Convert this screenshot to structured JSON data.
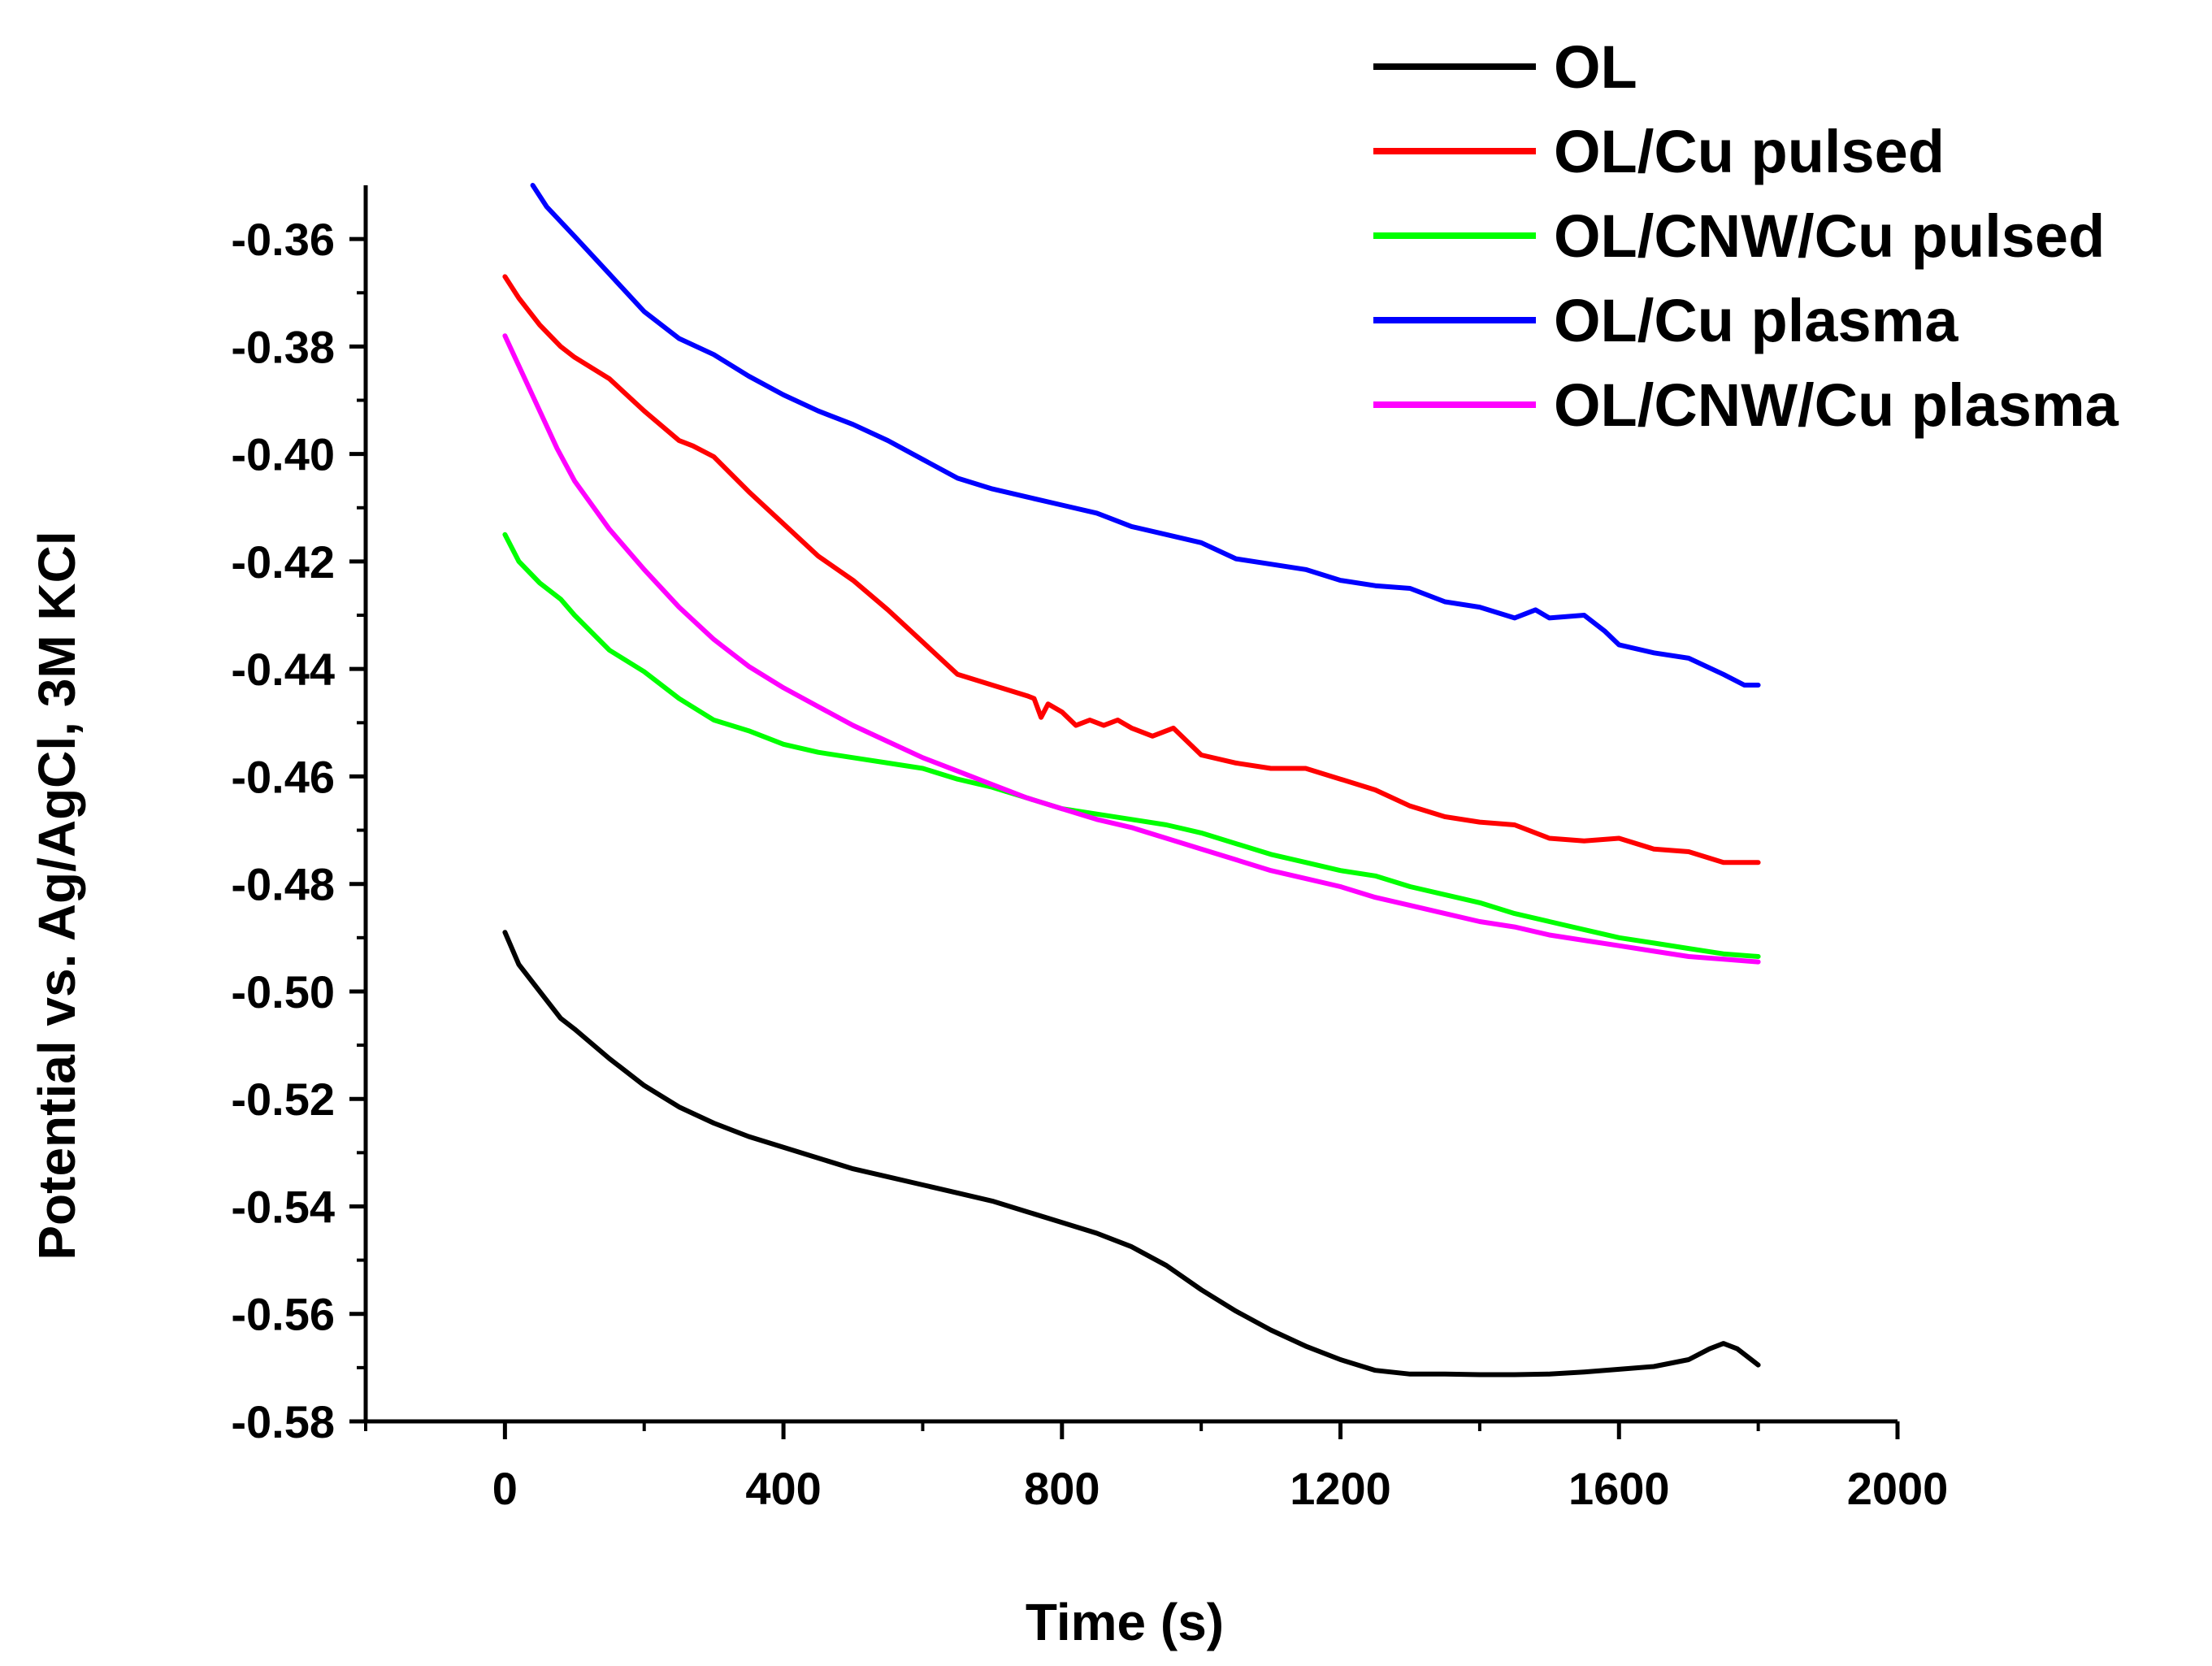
{
  "chart_data": {
    "type": "line",
    "title": "",
    "xlabel": "Time (s)",
    "ylabel": "Potential vs. Ag/AgCl, 3M KCl",
    "xlim": [
      -200,
      2000
    ],
    "ylim": [
      -0.58,
      -0.35
    ],
    "x_ticks": [
      0,
      400,
      800,
      1200,
      1600,
      2000
    ],
    "x_tick_labels": [
      "0",
      "400",
      "800",
      "1200",
      "1600",
      "2000"
    ],
    "y_ticks": [
      -0.58,
      -0.56,
      -0.54,
      -0.52,
      -0.5,
      -0.48,
      -0.46,
      -0.44,
      -0.42,
      -0.4,
      -0.38,
      -0.36
    ],
    "y_tick_labels": [
      "-0.58",
      "-0.56",
      "-0.54",
      "-0.52",
      "-0.50",
      "-0.48",
      "-0.46",
      "-0.44",
      "-0.42",
      "-0.40",
      "-0.38",
      "-0.36"
    ],
    "grid": false,
    "legend_position": "top-right",
    "series": [
      {
        "name": "OL",
        "color": "#000000",
        "x": [
          0,
          20,
          50,
          80,
          100,
          150,
          200,
          250,
          300,
          350,
          400,
          450,
          500,
          550,
          600,
          650,
          700,
          750,
          800,
          850,
          900,
          950,
          1000,
          1050,
          1100,
          1150,
          1200,
          1250,
          1300,
          1350,
          1400,
          1450,
          1500,
          1550,
          1600,
          1650,
          1700,
          1730,
          1750,
          1770,
          1800
        ],
        "y": [
          -0.489,
          -0.495,
          -0.5,
          -0.505,
          -0.507,
          -0.5125,
          -0.5175,
          -0.5215,
          -0.5245,
          -0.527,
          -0.529,
          -0.531,
          -0.533,
          -0.5345,
          -0.536,
          -0.5375,
          -0.539,
          -0.541,
          -0.543,
          -0.545,
          -0.5475,
          -0.551,
          -0.5555,
          -0.5595,
          -0.563,
          -0.566,
          -0.5685,
          -0.5705,
          -0.5712,
          -0.5712,
          -0.5713,
          -0.5713,
          -0.5712,
          -0.5708,
          -0.5703,
          -0.5698,
          -0.5685,
          -0.5665,
          -0.5655,
          -0.5665,
          -0.5695
        ]
      },
      {
        "name": "OL/Cu pulsed",
        "color": "#ff0000",
        "x": [
          0,
          20,
          50,
          80,
          100,
          150,
          200,
          250,
          270,
          300,
          350,
          400,
          450,
          500,
          550,
          600,
          650,
          700,
          750,
          760,
          770,
          780,
          800,
          820,
          840,
          860,
          880,
          900,
          930,
          960,
          1000,
          1050,
          1100,
          1150,
          1200,
          1250,
          1300,
          1350,
          1400,
          1450,
          1500,
          1550,
          1600,
          1650,
          1700,
          1750,
          1800
        ],
        "y": [
          -0.367,
          -0.371,
          -0.376,
          -0.38,
          -0.382,
          -0.386,
          -0.392,
          -0.3975,
          -0.3985,
          -0.4005,
          -0.407,
          -0.413,
          -0.419,
          -0.4235,
          -0.429,
          -0.435,
          -0.441,
          -0.443,
          -0.445,
          -0.4455,
          -0.449,
          -0.4465,
          -0.448,
          -0.4505,
          -0.4495,
          -0.4505,
          -0.4495,
          -0.451,
          -0.4525,
          -0.451,
          -0.456,
          -0.4575,
          -0.4585,
          -0.4585,
          -0.4605,
          -0.4625,
          -0.4655,
          -0.4675,
          -0.4685,
          -0.469,
          -0.4715,
          -0.472,
          -0.4715,
          -0.4735,
          -0.474,
          -0.476,
          -0.476
        ]
      },
      {
        "name": "OL/CNW/Cu pulsed",
        "color": "#00ff00",
        "x": [
          0,
          20,
          50,
          80,
          100,
          150,
          200,
          250,
          300,
          350,
          400,
          450,
          500,
          550,
          600,
          650,
          700,
          750,
          800,
          850,
          900,
          950,
          1000,
          1050,
          1100,
          1150,
          1200,
          1250,
          1300,
          1350,
          1400,
          1450,
          1500,
          1550,
          1600,
          1650,
          1700,
          1750,
          1800
        ],
        "y": [
          -0.415,
          -0.42,
          -0.424,
          -0.427,
          -0.43,
          -0.4365,
          -0.4405,
          -0.4455,
          -0.4495,
          -0.4515,
          -0.454,
          -0.4555,
          -0.4565,
          -0.4575,
          -0.4585,
          -0.4605,
          -0.462,
          -0.464,
          -0.466,
          -0.467,
          -0.468,
          -0.469,
          -0.4705,
          -0.4725,
          -0.4745,
          -0.476,
          -0.4775,
          -0.4785,
          -0.4805,
          -0.482,
          -0.4835,
          -0.4855,
          -0.487,
          -0.4885,
          -0.49,
          -0.491,
          -0.492,
          -0.493,
          -0.4935
        ]
      },
      {
        "name": "OL/Cu plasma",
        "color": "#0000ff",
        "x": [
          40,
          60,
          100,
          150,
          200,
          250,
          300,
          350,
          400,
          450,
          500,
          550,
          600,
          650,
          700,
          750,
          800,
          850,
          900,
          950,
          1000,
          1050,
          1100,
          1150,
          1200,
          1250,
          1300,
          1350,
          1400,
          1450,
          1480,
          1500,
          1550,
          1580,
          1600,
          1650,
          1700,
          1750,
          1780,
          1800
        ],
        "y": [
          -0.35,
          -0.354,
          -0.3595,
          -0.3665,
          -0.3735,
          -0.3785,
          -0.3815,
          -0.3855,
          -0.389,
          -0.392,
          -0.3945,
          -0.3975,
          -0.401,
          -0.4045,
          -0.4065,
          -0.408,
          -0.4095,
          -0.411,
          -0.4135,
          -0.415,
          -0.4165,
          -0.4195,
          -0.4205,
          -0.4215,
          -0.4235,
          -0.4245,
          -0.425,
          -0.4275,
          -0.4285,
          -0.4305,
          -0.429,
          -0.4305,
          -0.43,
          -0.433,
          -0.4355,
          -0.437,
          -0.438,
          -0.441,
          -0.443,
          -0.443
        ]
      },
      {
        "name": "OL/CNW/Cu plasma",
        "color": "#ff00ff",
        "x": [
          0,
          25,
          50,
          75,
          100,
          150,
          200,
          250,
          300,
          350,
          400,
          450,
          500,
          550,
          600,
          650,
          700,
          750,
          800,
          850,
          900,
          950,
          1000,
          1050,
          1100,
          1150,
          1200,
          1250,
          1300,
          1350,
          1400,
          1450,
          1500,
          1550,
          1600,
          1650,
          1700,
          1750,
          1800
        ],
        "y": [
          -0.378,
          -0.385,
          -0.392,
          -0.399,
          -0.405,
          -0.414,
          -0.4215,
          -0.4285,
          -0.4345,
          -0.4395,
          -0.4435,
          -0.447,
          -0.4505,
          -0.4535,
          -0.4565,
          -0.459,
          -0.4615,
          -0.464,
          -0.466,
          -0.468,
          -0.4695,
          -0.4715,
          -0.4735,
          -0.4755,
          -0.4775,
          -0.479,
          -0.4805,
          -0.4825,
          -0.484,
          -0.4855,
          -0.487,
          -0.488,
          -0.4895,
          -0.4905,
          -0.4915,
          -0.4925,
          -0.4935,
          -0.494,
          -0.4945
        ]
      }
    ]
  }
}
